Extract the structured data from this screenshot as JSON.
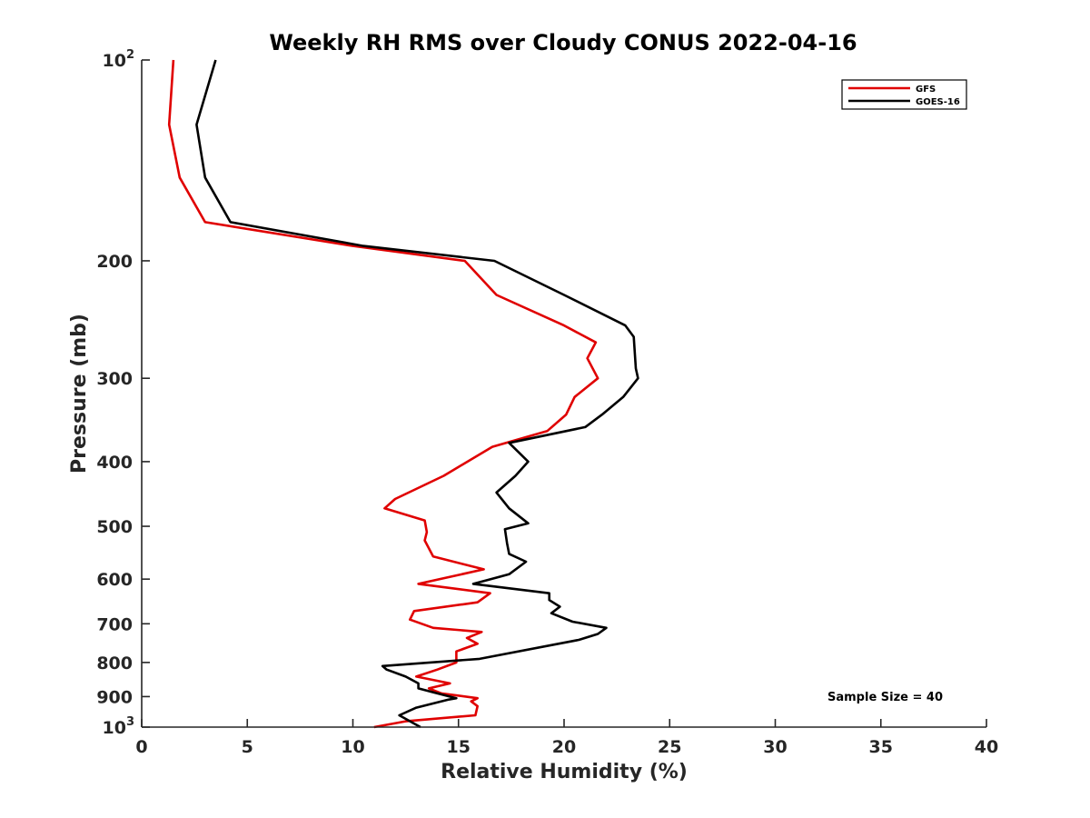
{
  "chart_data": {
    "type": "line",
    "title": "Weekly RH RMS over Cloudy CONUS 2022-04-16",
    "xlabel": "Relative Humidity (%)",
    "ylabel": "Pressure (mb)",
    "xlim": [
      0,
      40
    ],
    "ylim": [
      100,
      1000
    ],
    "y_scale": "log",
    "y_reversed": true,
    "x_ticks": [
      0,
      5,
      10,
      15,
      20,
      25,
      30,
      35,
      40
    ],
    "y_ticks": [
      {
        "value": 100,
        "label": "10",
        "sup": "2"
      },
      {
        "value": 200,
        "label": "200"
      },
      {
        "value": 300,
        "label": "300"
      },
      {
        "value": 400,
        "label": "400"
      },
      {
        "value": 500,
        "label": "500"
      },
      {
        "value": 600,
        "label": "600"
      },
      {
        "value": 700,
        "label": "700"
      },
      {
        "value": 800,
        "label": "800"
      },
      {
        "value": 900,
        "label": "900"
      },
      {
        "value": 1000,
        "label": "10",
        "sup": "3"
      }
    ],
    "legend_position": "top-right",
    "annotation": "Sample Size = 40",
    "series": [
      {
        "name": "GFS",
        "color": "#e00000",
        "points": [
          [
            1.5,
            100
          ],
          [
            1.3,
            125
          ],
          [
            1.8,
            150
          ],
          [
            3.0,
            175
          ],
          [
            10.0,
            190
          ],
          [
            15.3,
            200
          ],
          [
            16.8,
            225
          ],
          [
            20.0,
            250
          ],
          [
            21.5,
            265
          ],
          [
            21.1,
            280
          ],
          [
            21.6,
            300
          ],
          [
            20.5,
            320
          ],
          [
            20.1,
            340
          ],
          [
            19.2,
            360
          ],
          [
            16.6,
            380
          ],
          [
            14.3,
            420
          ],
          [
            12.0,
            455
          ],
          [
            11.5,
            470
          ],
          [
            13.4,
            490
          ],
          [
            13.5,
            510
          ],
          [
            13.4,
            525
          ],
          [
            13.8,
            555
          ],
          [
            16.2,
            580
          ],
          [
            13.1,
            610
          ],
          [
            16.5,
            630
          ],
          [
            15.9,
            650
          ],
          [
            12.9,
            670
          ],
          [
            12.7,
            690
          ],
          [
            13.8,
            710
          ],
          [
            16.1,
            720
          ],
          [
            15.4,
            735
          ],
          [
            15.9,
            750
          ],
          [
            14.9,
            770
          ],
          [
            14.9,
            800
          ],
          [
            14.0,
            820
          ],
          [
            13.0,
            840
          ],
          [
            14.6,
            860
          ],
          [
            13.6,
            875
          ],
          [
            14.2,
            890
          ],
          [
            15.9,
            905
          ],
          [
            15.6,
            915
          ],
          [
            15.9,
            930
          ],
          [
            15.8,
            960
          ],
          [
            12.5,
            980
          ],
          [
            11.0,
            1000
          ]
        ]
      },
      {
        "name": "GOES-16",
        "color": "#000000",
        "points": [
          [
            3.5,
            100
          ],
          [
            2.6,
            125
          ],
          [
            3.0,
            150
          ],
          [
            4.2,
            175
          ],
          [
            10.5,
            190
          ],
          [
            16.7,
            200
          ],
          [
            20.0,
            225
          ],
          [
            22.9,
            250
          ],
          [
            23.3,
            260
          ],
          [
            23.4,
            290
          ],
          [
            23.5,
            300
          ],
          [
            22.8,
            320
          ],
          [
            21.8,
            340
          ],
          [
            21.0,
            355
          ],
          [
            17.4,
            375
          ],
          [
            18.3,
            400
          ],
          [
            17.7,
            420
          ],
          [
            16.8,
            445
          ],
          [
            17.4,
            470
          ],
          [
            18.3,
            495
          ],
          [
            17.2,
            505
          ],
          [
            17.3,
            530
          ],
          [
            17.4,
            550
          ],
          [
            18.2,
            565
          ],
          [
            17.4,
            590
          ],
          [
            15.7,
            610
          ],
          [
            19.3,
            630
          ],
          [
            19.3,
            645
          ],
          [
            19.8,
            660
          ],
          [
            19.4,
            675
          ],
          [
            20.4,
            695
          ],
          [
            22.0,
            710
          ],
          [
            21.6,
            725
          ],
          [
            20.7,
            740
          ],
          [
            16.0,
            790
          ],
          [
            11.4,
            810
          ],
          [
            11.6,
            820
          ],
          [
            12.5,
            840
          ],
          [
            13.1,
            860
          ],
          [
            13.1,
            875
          ],
          [
            14.0,
            890
          ],
          [
            14.9,
            905
          ],
          [
            14.5,
            910
          ],
          [
            13.0,
            935
          ],
          [
            12.2,
            960
          ],
          [
            13.2,
            1000
          ]
        ]
      }
    ]
  }
}
